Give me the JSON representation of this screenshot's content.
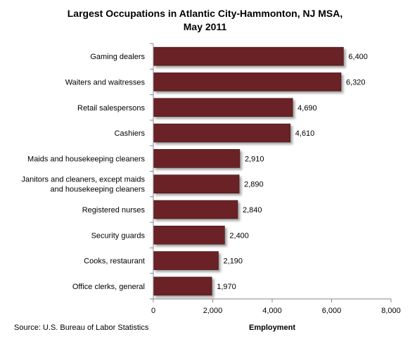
{
  "chart_data": {
    "type": "bar",
    "orientation": "horizontal",
    "title_line1": "Largest Occupations in Atlantic City-Hammonton, NJ MSA,",
    "title_line2": "May 2011",
    "categories": [
      "Gaming dealers",
      "Waiters and waitresses",
      "Retail salespersons",
      "Cashiers",
      "Maids and housekeeping cleaners",
      "Janitors and cleaners, except maids and housekeeping cleaners",
      "Registered nurses",
      "Security guards",
      "Cooks, restaurant",
      "Office clerks, general"
    ],
    "category_label_lines": [
      [
        "Gaming dealers"
      ],
      [
        "Waiters and waitresses"
      ],
      [
        "Retail salespersons"
      ],
      [
        "Cashiers"
      ],
      [
        "Maids and housekeeping cleaners"
      ],
      [
        "Janitors and cleaners, except maids",
        "and housekeeping cleaners"
      ],
      [
        "Registered nurses"
      ],
      [
        "Security guards"
      ],
      [
        "Cooks, restaurant"
      ],
      [
        "Office clerks, general"
      ]
    ],
    "values": [
      6400,
      6320,
      4690,
      4610,
      2910,
      2890,
      2840,
      2400,
      2190,
      1970
    ],
    "value_labels": [
      "6,400",
      "6,320",
      "4,690",
      "4,610",
      "2,910",
      "2,890",
      "2,840",
      "2,400",
      "2,190",
      "1,970"
    ],
    "xlabel": "Employment",
    "ylabel": "",
    "xlim": [
      0,
      8000
    ],
    "xticks": [
      0,
      2000,
      4000,
      6000,
      8000
    ],
    "xtick_labels": [
      "0",
      "2,000",
      "4,000",
      "6,000",
      "8,000"
    ],
    "grid": false,
    "legend": "none",
    "bar_color": "#6b2425",
    "source": "Source: U.S. Bureau of Labor Statistics"
  }
}
